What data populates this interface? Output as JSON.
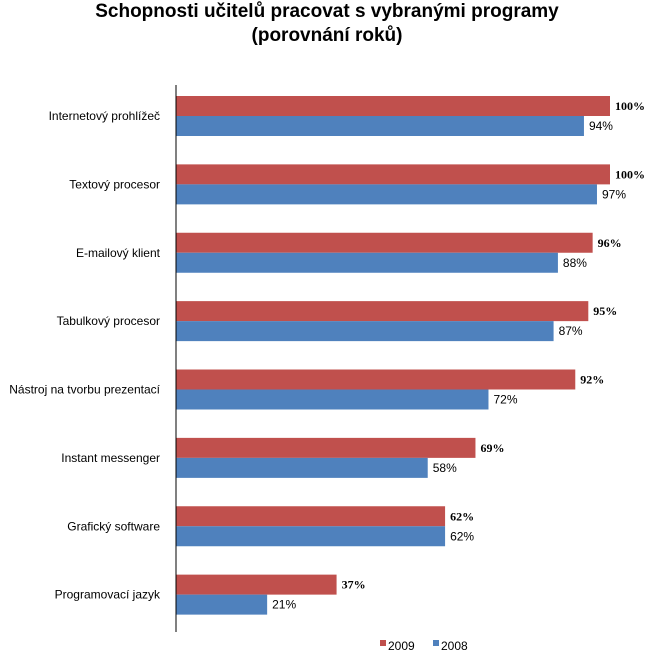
{
  "chart_data": {
    "type": "bar",
    "orientation": "horizontal",
    "title": [
      "Schopnosti učitelů pracovat s vybranými programy",
      "(porovnání roků)"
    ],
    "categories": [
      "Internetový prohlížeč",
      "Textový procesor",
      "E-mailový klient",
      "Tabulkový procesor",
      "Nástroj na tvorbu prezentací",
      "Instant messenger",
      "Grafický software",
      "Programovací jazyk"
    ],
    "series": [
      {
        "name": "2009",
        "color": "#c0504d",
        "values": [
          100,
          100,
          96,
          95,
          92,
          69,
          62,
          37
        ],
        "labels": [
          "100%",
          "100%",
          "96%",
          "95%",
          "92%",
          "69%",
          "62%",
          "37%"
        ]
      },
      {
        "name": "2008",
        "color": "#4f81bd",
        "values": [
          94,
          97,
          88,
          87,
          72,
          58,
          62,
          21
        ],
        "labels": [
          "94%",
          "97%",
          "88%",
          "87%",
          "72%",
          "58%",
          "62%",
          "21%"
        ]
      }
    ],
    "xlim": [
      0,
      100
    ],
    "grid": false,
    "legend_position": "bottom"
  }
}
